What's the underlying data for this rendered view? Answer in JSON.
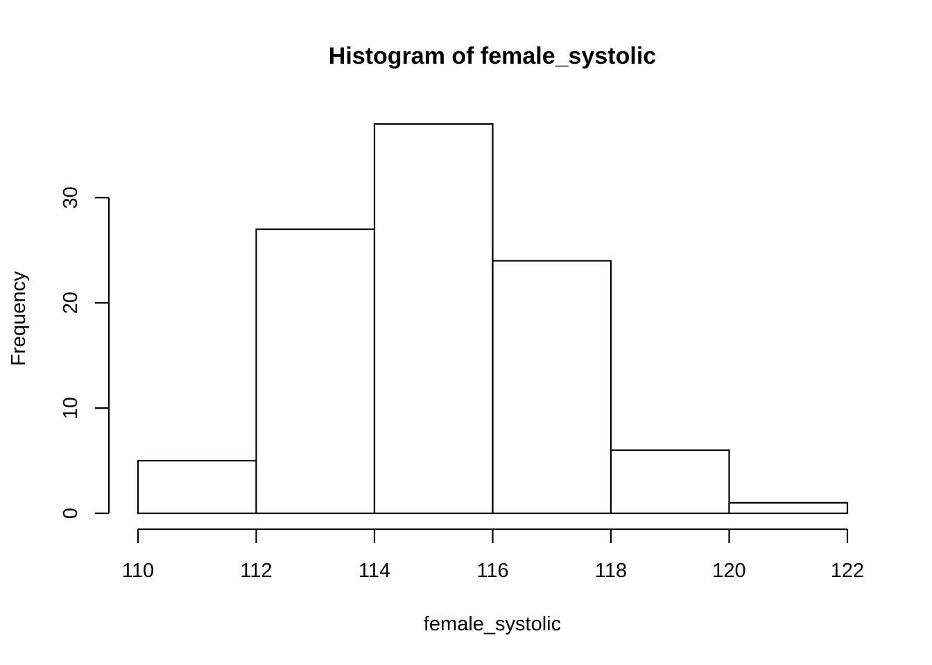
{
  "chart_data": {
    "type": "bar",
    "title": "Histogram of female_systolic",
    "xlabel": "female_systolic",
    "ylabel": "Frequency",
    "bins": [
      {
        "from": 110,
        "to": 112,
        "count": 5
      },
      {
        "from": 112,
        "to": 114,
        "count": 27
      },
      {
        "from": 114,
        "to": 116,
        "count": 37
      },
      {
        "from": 116,
        "to": 118,
        "count": 24
      },
      {
        "from": 118,
        "to": 120,
        "count": 6
      },
      {
        "from": 120,
        "to": 122,
        "count": 1
      }
    ],
    "xticks": [
      "110",
      "112",
      "114",
      "116",
      "118",
      "120",
      "122"
    ],
    "yticks": [
      "0",
      "10",
      "20",
      "30"
    ],
    "xlim": [
      110,
      122
    ],
    "ylim": [
      0,
      37
    ],
    "grid": false,
    "bar_fill": "#ffffff",
    "bar_stroke": "#000000"
  }
}
